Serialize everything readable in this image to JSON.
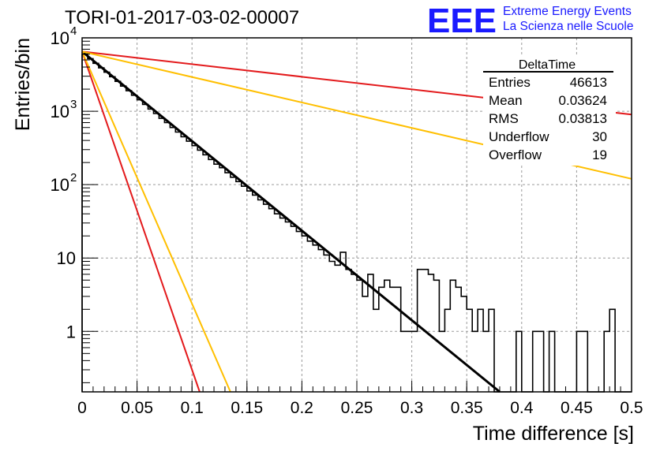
{
  "chart_data": {
    "type": "histogram",
    "title": "TORI-01-2017-03-02-00007",
    "xlabel": "Time difference [s]",
    "ylabel": "Entries/bin",
    "xlim": [
      0,
      0.5
    ],
    "ylim": [
      0.15,
      10000
    ],
    "y_scale": "log",
    "grid": true,
    "x_ticks": [
      "0",
      "0.05",
      "0.1",
      "0.15",
      "0.2",
      "0.25",
      "0.3",
      "0.35",
      "0.4",
      "0.45",
      "0.5"
    ],
    "y_ticks": [
      {
        "value": 10000,
        "base": "10",
        "exp": "4"
      },
      {
        "value": 1000,
        "base": "10",
        "exp": "3"
      },
      {
        "value": 100,
        "base": "10",
        "exp": "2"
      },
      {
        "value": 10,
        "base": "10",
        "exp": ""
      },
      {
        "value": 1,
        "base": "1",
        "exp": ""
      }
    ],
    "histogram": {
      "name": "DeltaTime",
      "color": "#000000",
      "bin_width": 0.005,
      "values": [
        6000,
        5200,
        4500,
        3900,
        3400,
        2950,
        2550,
        2200,
        1900,
        1650,
        1430,
        1240,
        1070,
        930,
        800,
        700,
        600,
        520,
        450,
        390,
        340,
        295,
        255,
        220,
        190,
        170,
        145,
        126,
        110,
        95,
        82,
        72,
        62,
        54,
        47,
        40,
        35,
        31,
        27,
        23,
        20,
        17,
        15,
        13,
        11,
        9,
        8,
        12,
        7,
        6,
        5,
        3,
        6,
        2,
        4,
        5,
        4,
        4,
        1,
        1,
        1,
        7,
        7,
        6,
        5,
        1,
        2,
        5,
        4,
        3,
        2,
        1,
        2,
        1,
        2,
        0,
        0,
        0,
        0,
        1,
        0,
        0,
        1,
        1,
        0,
        1,
        0,
        0,
        0,
        0,
        1,
        1,
        0,
        0,
        0,
        1,
        2,
        0,
        0,
        0
      ]
    },
    "series": [
      {
        "color": "#000000",
        "kind": "fit",
        "x": [
          0,
          0.38
        ],
        "y": [
          6500,
          0.15
        ]
      },
      {
        "color": "#e31a1c",
        "kind": "line",
        "x": [
          0,
          0.5
        ],
        "y": [
          6500,
          900
        ]
      },
      {
        "color": "#ffbf00",
        "kind": "line",
        "x": [
          0,
          0.5
        ],
        "y": [
          6500,
          120
        ]
      },
      {
        "color": "#e31a1c",
        "kind": "line",
        "x": [
          0,
          0.107
        ],
        "y": [
          6500,
          0.15
        ]
      },
      {
        "color": "#ffbf00",
        "kind": "line",
        "x": [
          0,
          0.135
        ],
        "y": [
          6500,
          0.15
        ]
      }
    ],
    "stats_box": {
      "title": "DeltaTime",
      "rows": [
        {
          "label": "Entries",
          "value": "46613"
        },
        {
          "label": "Mean",
          "value": "0.03624"
        },
        {
          "label": "RMS",
          "value": "0.03813"
        },
        {
          "label": "Underflow",
          "value": "30"
        },
        {
          "label": "Overflow",
          "value": "19"
        }
      ]
    }
  },
  "logo": {
    "text": "EEE",
    "line1": "Extreme Energy Events",
    "line2": "La Scienza nelle Scuole",
    "color": "#1a1aff"
  }
}
